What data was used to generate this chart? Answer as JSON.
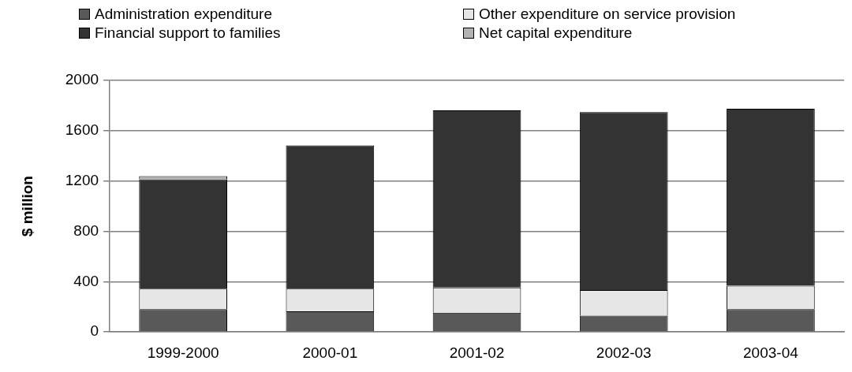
{
  "chart_data": {
    "type": "bar",
    "stacked": true,
    "ylabel": "$ million",
    "categories": [
      "1999-2000",
      "2000-01",
      "2001-02",
      "2002-03",
      "2003-04"
    ],
    "series": [
      {
        "name": "Administration expenditure",
        "color": "#595959",
        "values": [
          181,
          164,
          153,
          130,
          182
        ]
      },
      {
        "name": "Other expenditure on service provision",
        "color": "#e6e6e6",
        "values": [
          164,
          181,
          201,
          203,
          186
        ]
      },
      {
        "name": "Financial support to families",
        "color": "#333333",
        "values": [
          868,
          1138,
          1408,
          1415,
          1406
        ]
      },
      {
        "name": "Net capital expenditure",
        "color": "#b3b3b3",
        "values": [
          25,
          0,
          0,
          0,
          0
        ]
      }
    ],
    "ylim": [
      0,
      2000
    ],
    "yticks": [
      0,
      400,
      800,
      1200,
      1600,
      2000
    ],
    "grid": "y",
    "legend": "top"
  }
}
